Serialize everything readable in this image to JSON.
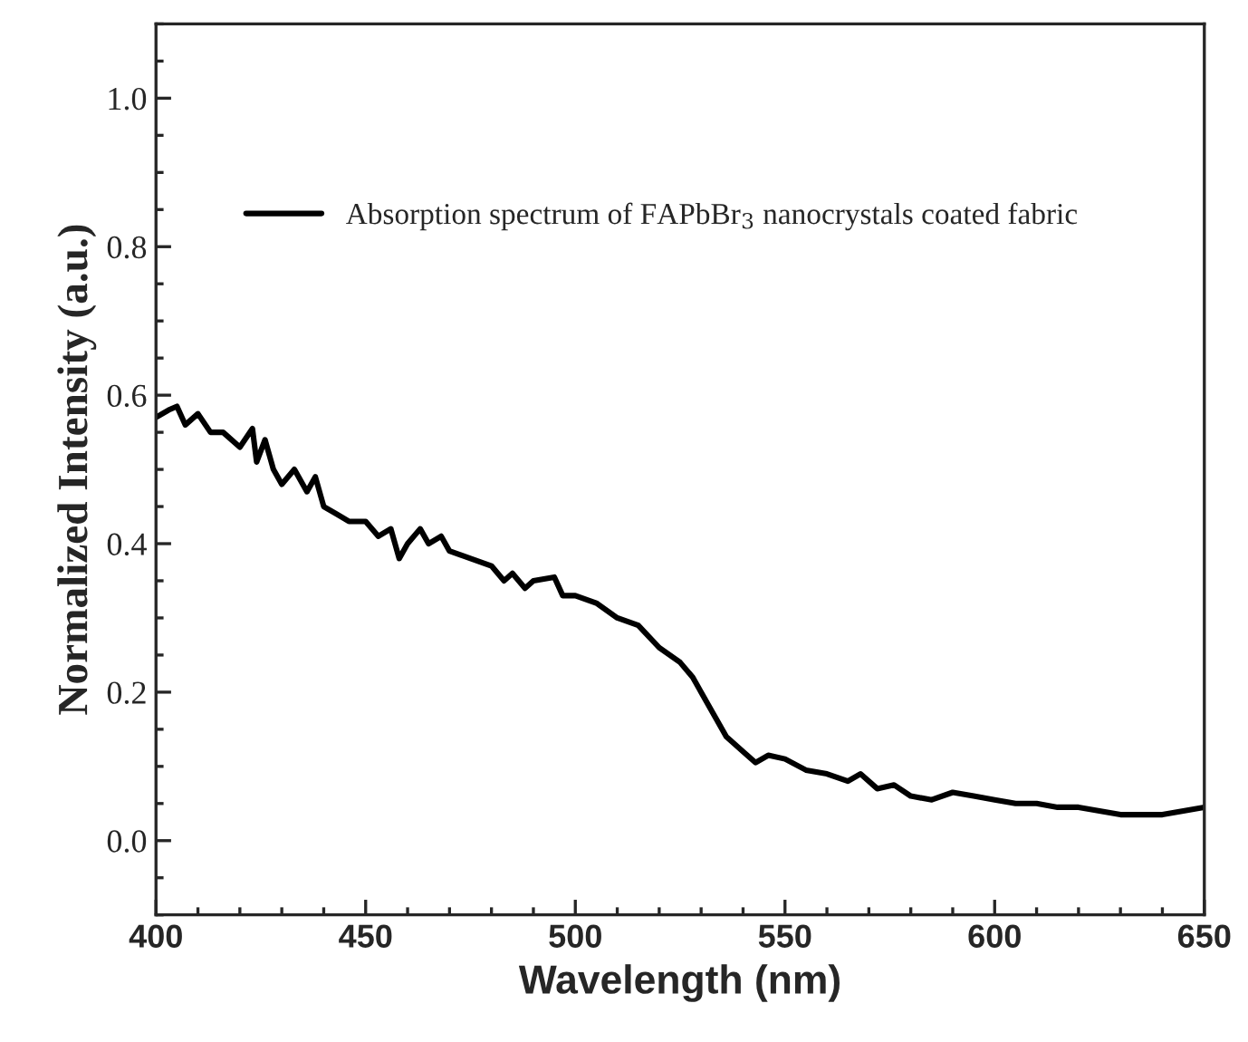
{
  "chart_data": {
    "type": "line",
    "xlabel": "Wavelength (nm)",
    "ylabel": "Normalized Intensity (a.u.)",
    "xlim": [
      400,
      650
    ],
    "xticks": [
      400,
      450,
      500,
      550,
      600,
      650
    ],
    "ylim": [
      -0.1,
      1.1
    ],
    "yticks": [
      {
        "value": 0.0,
        "label": "0.0"
      },
      0.2,
      0.4,
      0.6,
      0.8,
      {
        "value": 1.0,
        "label": "1.0"
      }
    ],
    "grid": false,
    "legend": "top left",
    "marker": "none",
    "line_style": "solid",
    "series": [
      {
        "name": "Absorption spectrum of FAPbBr$_{3}$ nanocrystals coated fabric",
        "color": "#000000",
        "x": [
          400,
          403,
          405,
          407,
          410,
          413,
          416,
          420,
          423,
          424,
          426,
          428,
          430,
          433,
          436,
          438,
          440,
          443,
          446,
          450,
          453,
          456,
          458,
          460,
          463,
          465,
          468,
          470,
          475,
          480,
          483,
          485,
          488,
          490,
          495,
          497,
          500,
          505,
          510,
          515,
          520,
          525,
          528,
          530,
          533,
          536,
          540,
          543,
          546,
          550,
          555,
          560,
          565,
          568,
          572,
          576,
          580,
          585,
          590,
          595,
          600,
          605,
          610,
          615,
          620,
          625,
          630,
          635,
          640,
          645,
          650
        ],
        "values": [
          0.57,
          0.58,
          0.585,
          0.56,
          0.575,
          0.55,
          0.55,
          0.53,
          0.555,
          0.51,
          0.54,
          0.5,
          0.48,
          0.5,
          0.47,
          0.49,
          0.45,
          0.44,
          0.43,
          0.43,
          0.41,
          0.42,
          0.38,
          0.4,
          0.42,
          0.4,
          0.41,
          0.39,
          0.38,
          0.37,
          0.35,
          0.36,
          0.34,
          0.35,
          0.355,
          0.33,
          0.33,
          0.32,
          0.3,
          0.29,
          0.26,
          0.24,
          0.22,
          0.2,
          0.17,
          0.14,
          0.12,
          0.105,
          0.115,
          0.11,
          0.095,
          0.09,
          0.08,
          0.09,
          0.07,
          0.075,
          0.06,
          0.055,
          0.065,
          0.06,
          0.055,
          0.05,
          0.05,
          0.045,
          0.045,
          0.04,
          0.035,
          0.035,
          0.035,
          0.04,
          0.045
        ]
      }
    ]
  }
}
